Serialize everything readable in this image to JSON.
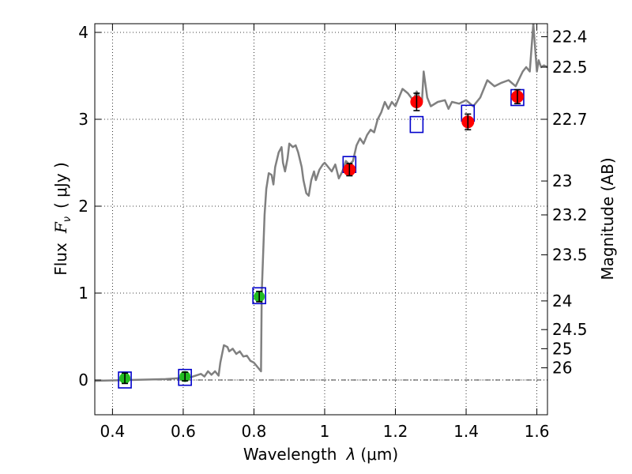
{
  "chart_data": {
    "type": "scatter",
    "xlabel_main": "Wavelength",
    "xlabel_symbol": "λ",
    "xlabel_unit": "(μm)",
    "ylabel_main": "Flux",
    "ylabel_symbol": "F",
    "ylabel_sub": "ν",
    "ylabel_unit": "( μJy )",
    "y2label": "Magnitude (AB)",
    "xlim": [
      0.35,
      1.63
    ],
    "ylim": [
      -0.4,
      4.1
    ],
    "grid": true,
    "x_ticks": [
      0.4,
      0.6,
      0.8,
      1.0,
      1.2,
      1.4,
      1.6
    ],
    "x_tick_labels": [
      "0.4",
      "0.6",
      "0.8",
      "1",
      "1.2",
      "1.4",
      "1.6"
    ],
    "y_ticks": [
      0,
      1,
      2,
      3,
      4
    ],
    "y_tick_labels": [
      "0",
      "1",
      "2",
      "3",
      "4"
    ],
    "mag_ticks": [
      {
        "label": "22.4",
        "flux": 3.95
      },
      {
        "label": "22.5",
        "flux": 3.6
      },
      {
        "label": "22.7",
        "flux": 3.0
      },
      {
        "label": "23",
        "flux": 2.29
      },
      {
        "label": "23.2",
        "flux": 1.9
      },
      {
        "label": "23.5",
        "flux": 1.44
      },
      {
        "label": "24",
        "flux": 0.91
      },
      {
        "label": "24.5",
        "flux": 0.58
      },
      {
        "label": "25",
        "flux": 0.36
      },
      {
        "label": "26",
        "flux": 0.14
      }
    ],
    "zero_line": 0,
    "series": [
      {
        "kind": "spectrum",
        "color": "#808080",
        "points": [
          [
            0.35,
            -0.01
          ],
          [
            0.45,
            0.0
          ],
          [
            0.55,
            0.01
          ],
          [
            0.62,
            0.03
          ],
          [
            0.65,
            0.07
          ],
          [
            0.66,
            0.04
          ],
          [
            0.67,
            0.1
          ],
          [
            0.68,
            0.06
          ],
          [
            0.69,
            0.1
          ],
          [
            0.7,
            0.05
          ],
          [
            0.705,
            0.2
          ],
          [
            0.715,
            0.4
          ],
          [
            0.725,
            0.38
          ],
          [
            0.73,
            0.33
          ],
          [
            0.74,
            0.36
          ],
          [
            0.75,
            0.3
          ],
          [
            0.76,
            0.33
          ],
          [
            0.77,
            0.27
          ],
          [
            0.78,
            0.28
          ],
          [
            0.79,
            0.22
          ],
          [
            0.8,
            0.2
          ],
          [
            0.81,
            0.15
          ],
          [
            0.82,
            0.1
          ],
          [
            0.822,
            1.0
          ],
          [
            0.83,
            1.9
          ],
          [
            0.835,
            2.2
          ],
          [
            0.842,
            2.38
          ],
          [
            0.85,
            2.36
          ],
          [
            0.855,
            2.25
          ],
          [
            0.86,
            2.45
          ],
          [
            0.87,
            2.62
          ],
          [
            0.878,
            2.68
          ],
          [
            0.882,
            2.5
          ],
          [
            0.888,
            2.4
          ],
          [
            0.895,
            2.55
          ],
          [
            0.9,
            2.72
          ],
          [
            0.91,
            2.68
          ],
          [
            0.918,
            2.7
          ],
          [
            0.925,
            2.62
          ],
          [
            0.935,
            2.45
          ],
          [
            0.94,
            2.3
          ],
          [
            0.948,
            2.15
          ],
          [
            0.955,
            2.12
          ],
          [
            0.962,
            2.3
          ],
          [
            0.97,
            2.4
          ],
          [
            0.975,
            2.3
          ],
          [
            0.985,
            2.42
          ],
          [
            0.995,
            2.48
          ],
          [
            1.0,
            2.5
          ],
          [
            1.01,
            2.45
          ],
          [
            1.02,
            2.4
          ],
          [
            1.03,
            2.48
          ],
          [
            1.04,
            2.32
          ],
          [
            1.05,
            2.4
          ],
          [
            1.06,
            2.52
          ],
          [
            1.07,
            2.48
          ],
          [
            1.08,
            2.52
          ],
          [
            1.09,
            2.7
          ],
          [
            1.1,
            2.78
          ],
          [
            1.11,
            2.72
          ],
          [
            1.12,
            2.82
          ],
          [
            1.13,
            2.88
          ],
          [
            1.14,
            2.85
          ],
          [
            1.15,
            3.0
          ],
          [
            1.16,
            3.08
          ],
          [
            1.17,
            3.2
          ],
          [
            1.18,
            3.12
          ],
          [
            1.19,
            3.2
          ],
          [
            1.2,
            3.15
          ],
          [
            1.21,
            3.25
          ],
          [
            1.22,
            3.35
          ],
          [
            1.235,
            3.3
          ],
          [
            1.25,
            3.22
          ],
          [
            1.26,
            3.32
          ],
          [
            1.275,
            3.2
          ],
          [
            1.28,
            3.55
          ],
          [
            1.29,
            3.25
          ],
          [
            1.3,
            3.15
          ],
          [
            1.32,
            3.2
          ],
          [
            1.34,
            3.22
          ],
          [
            1.35,
            3.12
          ],
          [
            1.36,
            3.2
          ],
          [
            1.38,
            3.18
          ],
          [
            1.4,
            3.22
          ],
          [
            1.42,
            3.15
          ],
          [
            1.44,
            3.25
          ],
          [
            1.46,
            3.45
          ],
          [
            1.48,
            3.38
          ],
          [
            1.5,
            3.42
          ],
          [
            1.52,
            3.45
          ],
          [
            1.54,
            3.38
          ],
          [
            1.56,
            3.55
          ],
          [
            1.57,
            3.6
          ],
          [
            1.58,
            3.55
          ],
          [
            1.59,
            4.1
          ],
          [
            1.6,
            3.55
          ],
          [
            1.605,
            3.68
          ],
          [
            1.612,
            3.6
          ],
          [
            1.62,
            3.62
          ],
          [
            1.63,
            3.6
          ]
        ]
      },
      {
        "kind": "model_boxes",
        "color": "#0000cc",
        "points": [
          {
            "x": 0.435,
            "y": 0.0
          },
          {
            "x": 0.605,
            "y": 0.03
          },
          {
            "x": 0.815,
            "y": 0.97
          },
          {
            "x": 1.07,
            "y": 2.48
          },
          {
            "x": 1.26,
            "y": 2.94
          },
          {
            "x": 1.405,
            "y": 3.07
          },
          {
            "x": 1.545,
            "y": 3.25
          }
        ]
      },
      {
        "kind": "observed_green",
        "color": "#22bb22",
        "points": [
          {
            "x": 0.435,
            "y": 0.02,
            "err": 0.06
          },
          {
            "x": 0.605,
            "y": 0.04,
            "err": 0.05
          },
          {
            "x": 0.815,
            "y": 0.96,
            "err": 0.06
          }
        ]
      },
      {
        "kind": "observed_red",
        "color": "#ff0000",
        "points": [
          {
            "x": 1.07,
            "y": 2.42,
            "err": 0.07
          },
          {
            "x": 1.26,
            "y": 3.2,
            "err": 0.1
          },
          {
            "x": 1.405,
            "y": 2.97,
            "err": 0.09
          },
          {
            "x": 1.545,
            "y": 3.26,
            "err": 0.08
          }
        ]
      }
    ]
  }
}
